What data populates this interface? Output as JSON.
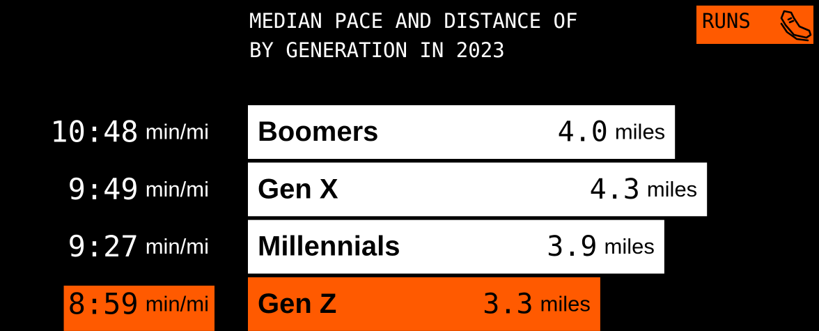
{
  "chart_data": {
    "type": "bar",
    "title": "MEDIAN PACE AND DISTANCE OF",
    "title_highlight": "RUNS",
    "subtitle": "BY GENERATION IN 2023",
    "categories": [
      "Boomers",
      "Gen X",
      "Millennials",
      "Gen Z"
    ],
    "values": [
      4.0,
      4.3,
      3.9,
      3.3
    ],
    "value_labels": [
      "4.0",
      "4.3",
      "3.9",
      "3.3"
    ],
    "value_unit": "miles",
    "pace_labels": [
      "10:48",
      "9:49",
      "9:27",
      "8:59"
    ],
    "pace_unit": "min/mi",
    "colors": [
      "#ffffff",
      "#ffffff",
      "#ffffff",
      "#ff5a00"
    ],
    "highlight_color": "#ff5a00"
  }
}
